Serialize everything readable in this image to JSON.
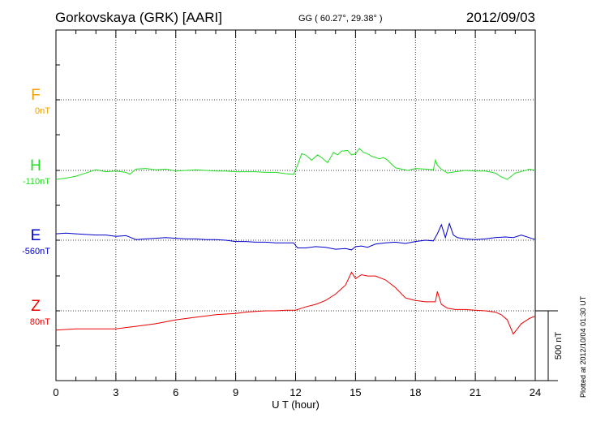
{
  "header": {
    "station": "Gorkovskaya (GRK)  [AARI]",
    "coords": "GG ( 60.27°,  29.38° )",
    "date": "2012/09/03"
  },
  "side_note": "Plotted at 2012/10/04 01:30 UT",
  "chart_data": {
    "type": "line",
    "xlabel": "U T (hour)",
    "xlim": [
      0,
      24
    ],
    "xticks": [
      0,
      3,
      6,
      9,
      12,
      15,
      18,
      21,
      24
    ],
    "scale_bar": "500 nT",
    "grid": true,
    "series": [
      {
        "name": "F",
        "baseline_label": "0nT",
        "color": "#f0a000",
        "x": [],
        "y": []
      },
      {
        "name": "H",
        "baseline_label": "-110nT",
        "color": "#22dd22",
        "x": [
          0,
          0.5,
          1,
          1.5,
          2,
          2.5,
          3,
          3.5,
          3.7,
          4,
          4.5,
          5,
          5.5,
          6,
          6.5,
          7,
          7.5,
          8,
          8.5,
          9,
          9.5,
          10,
          10.5,
          11,
          11.5,
          11.9,
          12.1,
          12.3,
          12.5,
          12.8,
          13.1,
          13.3,
          13.6,
          13.9,
          14.1,
          14.3,
          14.6,
          14.8,
          15,
          15.2,
          15.4,
          15.6,
          15.8,
          16,
          16.2,
          16.4,
          16.6,
          16.8,
          17,
          17.3,
          17.6,
          18,
          18.5,
          18.9,
          19,
          19.1,
          19.3,
          19.6,
          20,
          20.5,
          21,
          21.5,
          22,
          22.3,
          22.6,
          23,
          23.4,
          23.7,
          24
        ],
        "y": [
          -70,
          -60,
          -45,
          -20,
          5,
          -10,
          -5,
          -15,
          -30,
          10,
          15,
          5,
          10,
          -5,
          0,
          5,
          0,
          -5,
          -5,
          -10,
          -10,
          -10,
          -15,
          -15,
          -25,
          -30,
          40,
          130,
          120,
          80,
          120,
          100,
          60,
          140,
          120,
          150,
          155,
          120,
          130,
          170,
          140,
          130,
          110,
          100,
          90,
          100,
          80,
          50,
          20,
          10,
          0,
          15,
          10,
          5,
          80,
          40,
          10,
          -20,
          -10,
          0,
          -5,
          -5,
          -20,
          -50,
          -70,
          -20,
          -5,
          10,
          0
        ]
      },
      {
        "name": "E",
        "baseline_label": "-560nT",
        "color": "#0000cc",
        "x": [
          0,
          0.5,
          1,
          1.5,
          2,
          2.5,
          3,
          3.5,
          3.6,
          4,
          4.5,
          5,
          5.5,
          6,
          6.5,
          7,
          7.5,
          8,
          8.5,
          9,
          9.5,
          10,
          10.5,
          11,
          11.5,
          11.9,
          12.1,
          12.5,
          13,
          13.5,
          14,
          14.5,
          14.8,
          15,
          15.3,
          15.6,
          16,
          16.5,
          17,
          17.5,
          18,
          18.5,
          18.9,
          19.1,
          19.3,
          19.5,
          19.7,
          19.9,
          20.1,
          20.5,
          21,
          21.5,
          22,
          22.5,
          22.9,
          23.3,
          23.7,
          24
        ],
        "y": [
          50,
          55,
          50,
          45,
          40,
          40,
          30,
          35,
          30,
          5,
          10,
          15,
          20,
          15,
          10,
          10,
          5,
          5,
          0,
          -10,
          -10,
          -15,
          -15,
          -20,
          -20,
          -20,
          -60,
          -60,
          -50,
          -55,
          -70,
          -65,
          -75,
          -50,
          -45,
          -55,
          -30,
          -20,
          -15,
          -25,
          -10,
          0,
          -5,
          50,
          120,
          20,
          130,
          40,
          20,
          10,
          5,
          10,
          20,
          25,
          20,
          40,
          20,
          5
        ]
      },
      {
        "name": "Z",
        "baseline_label": "80nT",
        "color": "#ee0000",
        "x": [
          0,
          0.5,
          1,
          1.5,
          2,
          2.5,
          3,
          3.5,
          4,
          4.5,
          5,
          5.5,
          6,
          6.5,
          7,
          7.5,
          8,
          8.5,
          9,
          9.5,
          10,
          10.5,
          11,
          11.5,
          12,
          12.5,
          13,
          13.5,
          14,
          14.5,
          14.8,
          15,
          15.3,
          15.6,
          16,
          16.5,
          17,
          17.5,
          18,
          18.5,
          19,
          19.1,
          19.3,
          19.6,
          20,
          20.5,
          21,
          21.5,
          22,
          22.3,
          22.6,
          22.9,
          23.3,
          23.7,
          24
        ],
        "y": [
          -150,
          -145,
          -140,
          -140,
          -140,
          -140,
          -140,
          -130,
          -120,
          -110,
          -100,
          -85,
          -70,
          -60,
          -50,
          -40,
          -30,
          -25,
          -20,
          -10,
          -5,
          0,
          0,
          5,
          5,
          30,
          50,
          80,
          130,
          200,
          300,
          250,
          280,
          270,
          270,
          240,
          180,
          100,
          80,
          70,
          70,
          150,
          50,
          20,
          10,
          10,
          5,
          0,
          -10,
          -30,
          -70,
          -180,
          -100,
          -60,
          -40
        ]
      }
    ]
  }
}
